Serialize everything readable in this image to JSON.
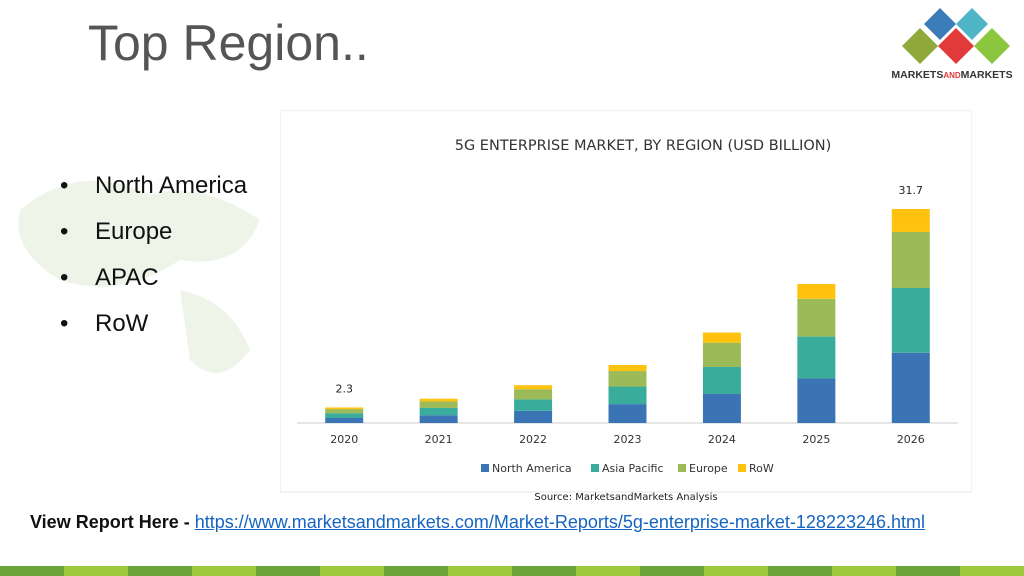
{
  "header": {
    "title": "Top Region..",
    "logo": [
      "MARKETS",
      "AND",
      "MARKETS"
    ]
  },
  "bullets": [
    "North America",
    "Europe",
    "APAC",
    "RoW"
  ],
  "chart_data": {
    "type": "bar",
    "stacked": true,
    "title": "5G ENTERPRISE MARKET, BY REGION (USD BILLION)",
    "categories": [
      "2020",
      "2021",
      "2022",
      "2023",
      "2024",
      "2025",
      "2026"
    ],
    "series": [
      {
        "name": "North America",
        "color": "#3a74b4",
        "values": [
          0.74,
          1.15,
          1.8,
          2.8,
          4.3,
          6.6,
          10.4
        ]
      },
      {
        "name": "Asia Pacific",
        "color": "#3aac9b",
        "values": [
          0.7,
          1.08,
          1.7,
          2.6,
          4.0,
          6.2,
          9.6
        ]
      },
      {
        "name": "Europe",
        "color": "#9cbb58",
        "values": [
          0.62,
          0.97,
          1.5,
          2.3,
          3.6,
          5.6,
          8.3
        ]
      },
      {
        "name": "RoW",
        "color": "#ffc20e",
        "values": [
          0.24,
          0.4,
          0.6,
          0.9,
          1.5,
          2.2,
          3.4
        ]
      }
    ],
    "annotations": [
      {
        "x": "2020",
        "value": 2.3
      },
      {
        "x": "2026",
        "value": 31.7
      }
    ],
    "source": "Source: MarketsandMarkets Analysis"
  },
  "footer": {
    "label": "View Report Here -",
    "link": "https://www.marketsandmarkets.com/Market-Reports/5g-enterprise-market-128223246.html"
  }
}
